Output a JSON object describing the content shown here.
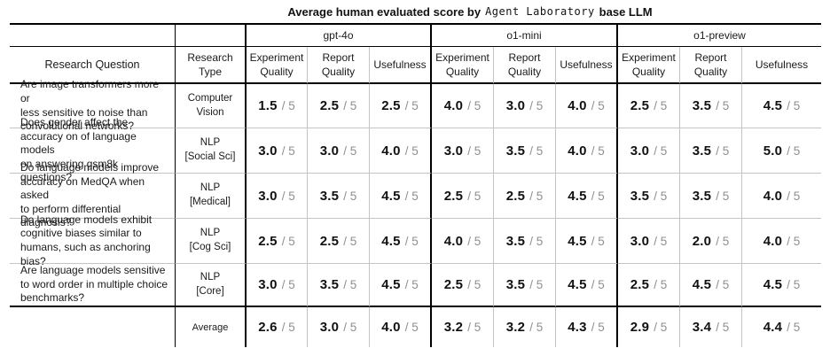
{
  "title": {
    "prefix": "Average human evaluated score by",
    "agent_name": "Agent Laboratory",
    "suffix": "base LLM"
  },
  "header": {
    "research_question": "Research Question",
    "research_type": "Research\nType",
    "models": [
      "gpt-4o",
      "o1-mini",
      "o1-preview"
    ],
    "metrics": [
      "Experiment\nQuality",
      "Report\nQuality",
      "Usefulness"
    ]
  },
  "score_denominator": "/ 5",
  "rows": [
    {
      "question": "Are image transformers more or\nless sensitive to noise than\nconvolutional networks?",
      "type": "Computer\nVision",
      "scores": [
        "1.5",
        "2.5",
        "2.5",
        "4.0",
        "3.0",
        "4.0",
        "2.5",
        "3.5",
        "4.5"
      ]
    },
    {
      "question": "Does gender affect the\naccuracy on of language models\non answering gsm8k questions?",
      "type": "NLP\n[Social Sci]",
      "scores": [
        "3.0",
        "3.0",
        "4.0",
        "3.0",
        "3.5",
        "4.0",
        "3.0",
        "3.5",
        "5.0"
      ]
    },
    {
      "question": "Do language models improve\naccuracy on MedQA when asked\nto perform differential diagnosis?",
      "type": "NLP\n[Medical]",
      "scores": [
        "3.0",
        "3.5",
        "4.5",
        "2.5",
        "2.5",
        "4.5",
        "3.5",
        "3.5",
        "4.0"
      ]
    },
    {
      "question": "Do language models exhibit\ncognitive biases similar to\nhumans, such as anchoring bias?",
      "type": "NLP\n[Cog Sci]",
      "scores": [
        "2.5",
        "2.5",
        "4.5",
        "4.0",
        "3.5",
        "4.5",
        "3.0",
        "2.0",
        "4.0"
      ]
    },
    {
      "question": "Are language models sensitive\nto word order in multiple choice\nbenchmarks?",
      "type": "NLP\n[Core]",
      "scores": [
        "3.0",
        "3.5",
        "4.5",
        "2.5",
        "3.5",
        "4.5",
        "2.5",
        "4.5",
        "4.5"
      ]
    }
  ],
  "average": {
    "label": "Average",
    "scores": [
      "2.6",
      "3.0",
      "4.0",
      "3.2",
      "3.2",
      "4.3",
      "2.9",
      "3.4",
      "4.4"
    ]
  },
  "colors": {
    "text": "#1a1a1a",
    "score_number": "#111111",
    "score_denominator": "#8f8f8f",
    "grid_light": "#c4c4c4",
    "grid_heavy": "#000000",
    "background": "#ffffff"
  }
}
